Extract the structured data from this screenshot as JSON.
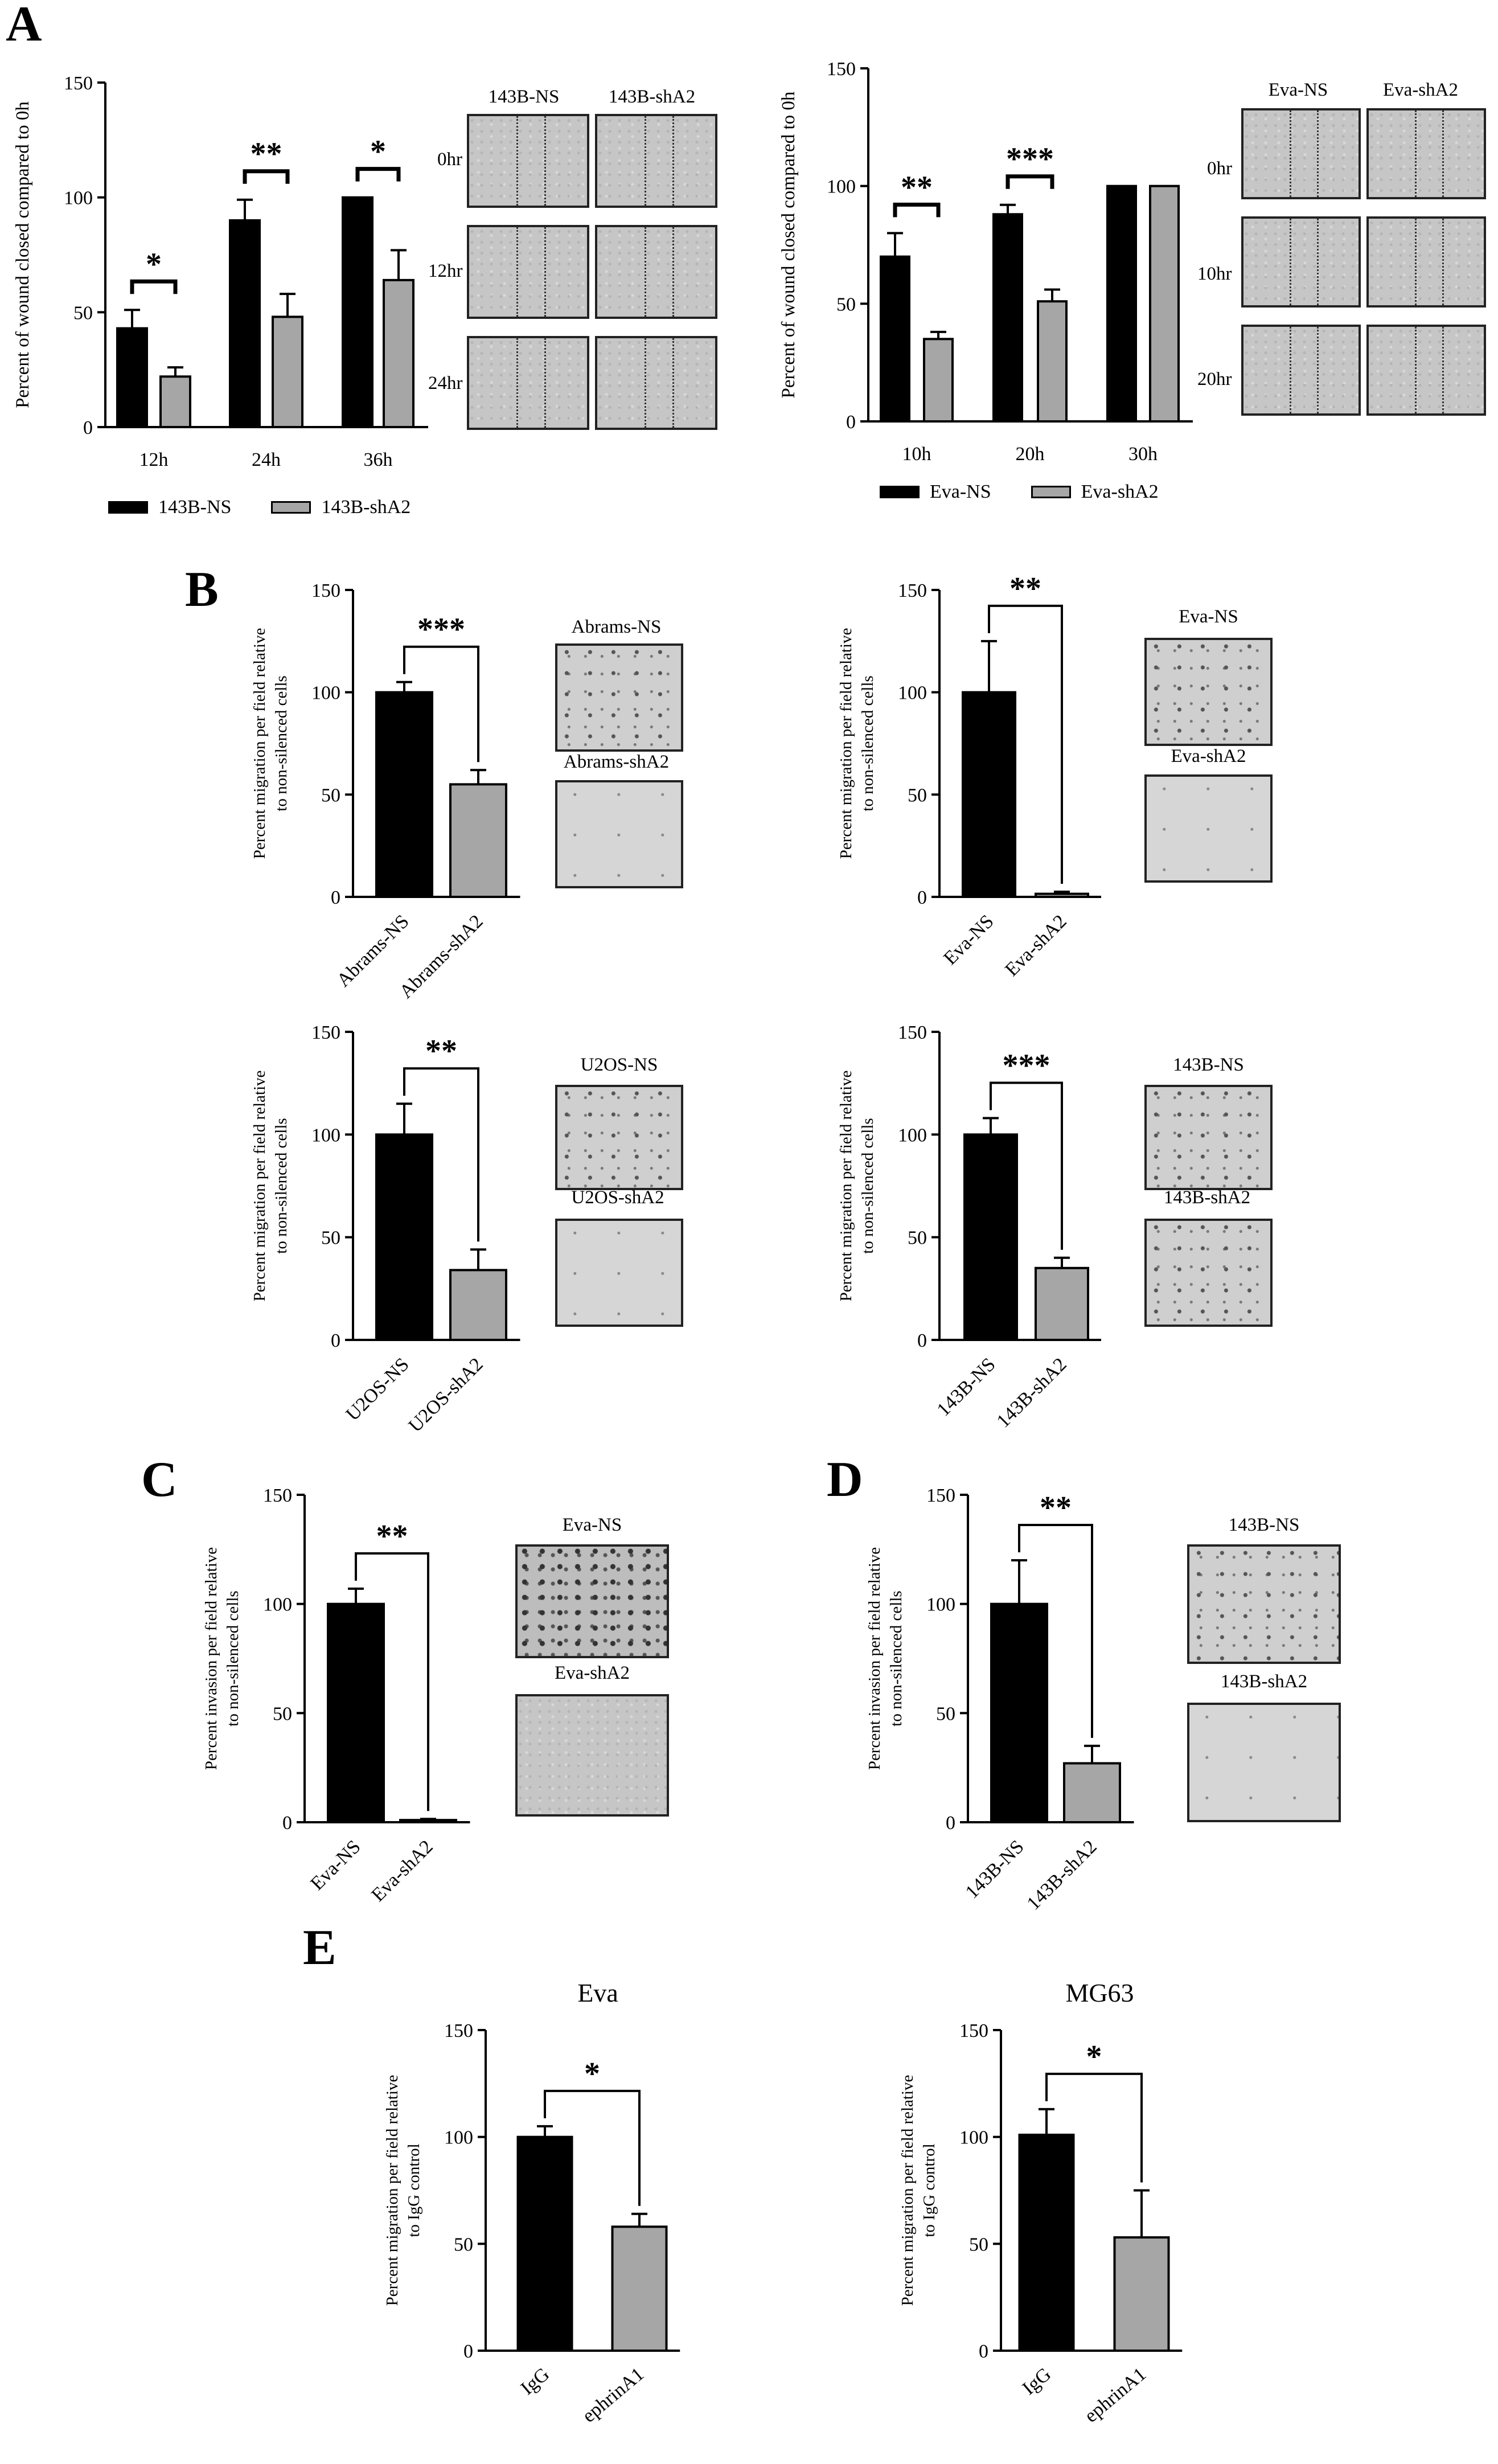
{
  "panel_letters": {
    "A": "A",
    "B": "B",
    "C": "C",
    "D": "D",
    "E": "E"
  },
  "colors": {
    "ns_bar": "#000000",
    "sh_bar": "#a6a6a6",
    "axis": "#000000"
  },
  "chart_data": [
    {
      "id": "A1",
      "type": "bar",
      "grouped": true,
      "title": "",
      "xlabel": "",
      "ylabel": "Percent of wound closed compared to 0h",
      "categories": [
        "12h",
        "24h",
        "36h"
      ],
      "ylim": [
        0,
        150
      ],
      "yticks": [
        0,
        50,
        100,
        150
      ],
      "series": [
        {
          "name": "143B-NS",
          "values": [
            43,
            90,
            100
          ],
          "errors": [
            8,
            9,
            0
          ]
        },
        {
          "name": "143B-shA2",
          "values": [
            22,
            48,
            64
          ],
          "errors": [
            4,
            10,
            13
          ]
        }
      ],
      "annotations": [
        "*",
        "**",
        "*"
      ]
    },
    {
      "id": "A2",
      "type": "bar",
      "grouped": true,
      "title": "",
      "xlabel": "",
      "ylabel": "Percent of wound closed compared to 0h",
      "categories": [
        "10h",
        "20h",
        "30h"
      ],
      "ylim": [
        0,
        150
      ],
      "yticks": [
        0,
        50,
        100,
        150
      ],
      "series": [
        {
          "name": "Eva-NS",
          "values": [
            70,
            88,
            100
          ],
          "errors": [
            10,
            4,
            0
          ]
        },
        {
          "name": "Eva-shA2",
          "values": [
            35,
            51,
            100
          ],
          "errors": [
            3,
            5,
            0
          ]
        }
      ],
      "annotations": [
        "**",
        "***",
        ""
      ]
    },
    {
      "id": "B1",
      "type": "bar",
      "title": "",
      "xlabel": "",
      "ylabel": [
        "Percent migration per field relative",
        "to non-silenced cells"
      ],
      "categories": [
        "Abrams-NS",
        "Abrams-shA2"
      ],
      "values": [
        100,
        55
      ],
      "errors": [
        5,
        7
      ],
      "ylim": [
        0,
        150
      ],
      "yticks": [
        0,
        50,
        100,
        150
      ],
      "annotation": "***"
    },
    {
      "id": "B2",
      "type": "bar",
      "title": "",
      "xlabel": "",
      "ylabel": [
        "Percent migration per field relative",
        "to non-silenced cells"
      ],
      "categories": [
        "Eva-NS",
        "Eva-shA2"
      ],
      "values": [
        100,
        1.5
      ],
      "errors": [
        25,
        1
      ],
      "ylim": [
        0,
        150
      ],
      "yticks": [
        0,
        50,
        100,
        150
      ],
      "annotation": "**"
    },
    {
      "id": "B3",
      "type": "bar",
      "title": "",
      "xlabel": "",
      "ylabel": [
        "Percent migration per field relative",
        "to non-silenced cells"
      ],
      "categories": [
        "U2OS-NS",
        "U2OS-shA2"
      ],
      "values": [
        100,
        34
      ],
      "errors": [
        15,
        10
      ],
      "ylim": [
        0,
        150
      ],
      "yticks": [
        0,
        50,
        100,
        150
      ],
      "annotation": "**"
    },
    {
      "id": "B4",
      "type": "bar",
      "title": "",
      "xlabel": "",
      "ylabel": [
        "Percent migration per field relative",
        "to non-silenced cells"
      ],
      "categories": [
        "143B-NS",
        "143B-shA2"
      ],
      "values": [
        100,
        35
      ],
      "errors": [
        8,
        5
      ],
      "ylim": [
        0,
        150
      ],
      "yticks": [
        0,
        50,
        100,
        150
      ],
      "annotation": "***"
    },
    {
      "id": "C",
      "type": "bar",
      "title": "",
      "xlabel": "",
      "ylabel": [
        "Percent invasion per field relative",
        "to non-silenced cells"
      ],
      "categories": [
        "Eva-NS",
        "Eva-shA2"
      ],
      "values": [
        100,
        1
      ],
      "errors": [
        7,
        0.5
      ],
      "ylim": [
        0,
        150
      ],
      "yticks": [
        0,
        50,
        100,
        150
      ],
      "annotation": "**"
    },
    {
      "id": "D",
      "type": "bar",
      "title": "",
      "xlabel": "",
      "ylabel": [
        "Percent invasion per field relative",
        "to non-silenced cells"
      ],
      "categories": [
        "143B-NS",
        "143B-shA2"
      ],
      "values": [
        100,
        27
      ],
      "errors": [
        20,
        8
      ],
      "ylim": [
        0,
        150
      ],
      "yticks": [
        0,
        50,
        100,
        150
      ],
      "annotation": "**"
    },
    {
      "id": "E1",
      "type": "bar",
      "title": "Eva",
      "xlabel": "",
      "ylabel": [
        "Percent migration per field relative",
        "to IgG control"
      ],
      "categories": [
        "IgG",
        "ephrinA1"
      ],
      "values": [
        100,
        58
      ],
      "errors": [
        5,
        6
      ],
      "ylim": [
        0,
        150
      ],
      "yticks": [
        0,
        50,
        100,
        150
      ],
      "annotation": "*"
    },
    {
      "id": "E2",
      "type": "bar",
      "title": "MG63",
      "xlabel": "",
      "ylabel": [
        "Percent migration per field relative",
        "to IgG control"
      ],
      "categories": [
        "IgG",
        "ephrinA1"
      ],
      "values": [
        101,
        53
      ],
      "errors": [
        12,
        22
      ],
      "ylim": [
        0,
        150
      ],
      "yticks": [
        0,
        50,
        100,
        150
      ],
      "annotation": "*"
    }
  ],
  "legends": {
    "A1": [
      "143B-NS",
      "143B-shA2"
    ],
    "A2": [
      "Eva-NS",
      "Eva-shA2"
    ]
  },
  "micrographs": {
    "A1": {
      "columns": [
        "143B-NS",
        "143B-shA2"
      ],
      "rows": [
        "0hr",
        "12hr",
        "24hr"
      ]
    },
    "A2": {
      "columns": [
        "Eva-NS",
        "Eva-shA2"
      ],
      "rows": [
        "0hr",
        "10hr",
        "20hr"
      ]
    },
    "B1": [
      "Abrams-NS",
      "Abrams-shA2"
    ],
    "B2": [
      "Eva-NS",
      "Eva-shA2"
    ],
    "B3": [
      "U2OS-NS",
      "U2OS-shA2"
    ],
    "B4": [
      "143B-NS",
      "143B-shA2"
    ],
    "C": [
      "Eva-NS",
      "Eva-shA2"
    ],
    "D": [
      "143B-NS",
      "143B-shA2"
    ]
  }
}
